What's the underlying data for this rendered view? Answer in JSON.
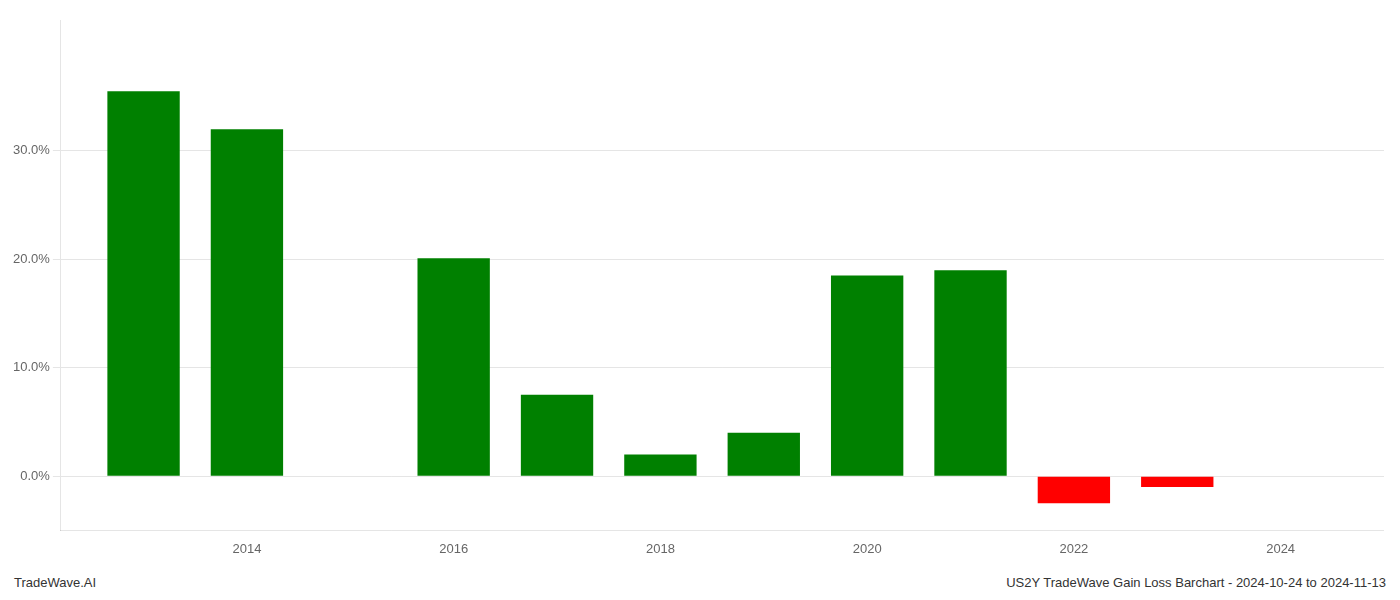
{
  "chart_data": {
    "type": "bar",
    "x": [
      2013,
      2014,
      2016,
      2017,
      2018,
      2019,
      2020,
      2021,
      2022,
      2023
    ],
    "values": [
      0.355,
      0.32,
      0.201,
      0.075,
      0.02,
      0.04,
      0.185,
      0.19,
      -0.025,
      -0.01
    ],
    "colors": [
      "#008000",
      "#008000",
      "#008000",
      "#008000",
      "#008000",
      "#008000",
      "#008000",
      "#008000",
      "#ff0000",
      "#ff0000"
    ],
    "xlim": [
      2012.2,
      2025.0
    ],
    "xticks": [
      2014,
      2016,
      2018,
      2020,
      2022,
      2024
    ],
    "ylim": [
      -0.05,
      0.42
    ],
    "yticks": [
      {
        "value": 0.0,
        "label": "0.0%"
      },
      {
        "value": 0.1,
        "label": "10.0%"
      },
      {
        "value": 0.2,
        "label": "20.0%"
      },
      {
        "value": 0.3,
        "label": "30.0%"
      }
    ],
    "grid": "y",
    "annotations": [
      "TradeWave.AI",
      "US2Y TradeWave Gain Loss Barchart - 2024-10-24 to 2024-11-13"
    ]
  }
}
